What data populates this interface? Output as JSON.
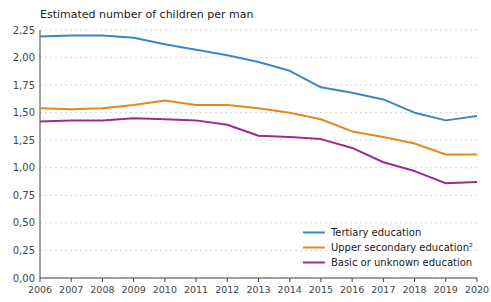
{
  "chart_data": {
    "type": "line",
    "y_label": "Estimated number of children per man",
    "x": [
      2006,
      2007,
      2008,
      2009,
      2010,
      2011,
      2012,
      2013,
      2014,
      2015,
      2016,
      2017,
      2018,
      2019,
      2020
    ],
    "series": [
      {
        "name": "Tertiary education",
        "color": "#3a86c8",
        "values": [
          2.19,
          2.2,
          2.2,
          2.18,
          2.12,
          2.07,
          2.02,
          1.96,
          1.88,
          1.73,
          1.68,
          1.62,
          1.5,
          1.43,
          1.47
        ]
      },
      {
        "name": "Upper secondary  education²",
        "color": "#e8871a",
        "values": [
          1.54,
          1.53,
          1.54,
          1.57,
          1.61,
          1.57,
          1.57,
          1.54,
          1.5,
          1.44,
          1.33,
          1.28,
          1.22,
          1.12,
          1.12
        ]
      },
      {
        "name": "Basic or unknown education",
        "color": "#9b2d8e",
        "values": [
          1.42,
          1.43,
          1.43,
          1.45,
          1.44,
          1.43,
          1.39,
          1.29,
          1.28,
          1.26,
          1.18,
          1.05,
          0.97,
          0.86,
          0.87
        ]
      }
    ],
    "xlim": [
      2006,
      2020
    ],
    "xticks": [
      2006,
      2007,
      2008,
      2009,
      2010,
      2011,
      2012,
      2013,
      2014,
      2015,
      2016,
      2017,
      2018,
      2019,
      2020
    ],
    "ylim": [
      0,
      2.25
    ],
    "yticks": [
      {
        "value": 0.0,
        "label": "0,00"
      },
      {
        "value": 0.25,
        "label": "0,25"
      },
      {
        "value": 0.5,
        "label": "0,50"
      },
      {
        "value": 0.75,
        "label": "0,75"
      },
      {
        "value": 1.0,
        "label": "1,00"
      },
      {
        "value": 1.25,
        "label": "1,25"
      },
      {
        "value": 1.5,
        "label": "1,50"
      },
      {
        "value": 1.75,
        "label": "1,75"
      },
      {
        "value": 2.0,
        "label": "2,00"
      },
      {
        "value": 2.25,
        "label": "2,25"
      }
    ],
    "grid": true,
    "legend": "lower right"
  }
}
